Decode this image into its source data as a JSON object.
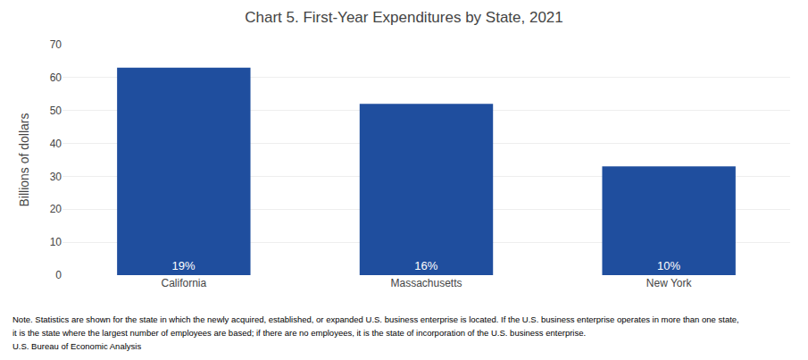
{
  "chart_data": {
    "type": "bar",
    "title": "Chart 5. First-Year Expenditures by State, 2021",
    "ylabel": "Billions of dollars",
    "categories": [
      "California",
      "Massachusetts",
      "New York"
    ],
    "values": [
      63,
      52,
      33
    ],
    "annotations": [
      "19%",
      "16%",
      "10%"
    ],
    "color": "#1F4E9E",
    "ylim": [
      0,
      70
    ],
    "yticks": [
      0,
      10,
      20,
      30,
      40,
      50,
      60,
      70
    ],
    "grid": true,
    "notes": [
      "Note. Statistics are shown for the state in which the newly acquired, established, or expanded U.S. business enterprise is located. If the U.S. business enterprise operates in more than one state,",
      "it is the state where the largest number of employees are based; if there are no employees, it is the state of incorporation of the U.S. business enterprise.",
      "U.S. Bureau of Economic Analysis"
    ]
  }
}
